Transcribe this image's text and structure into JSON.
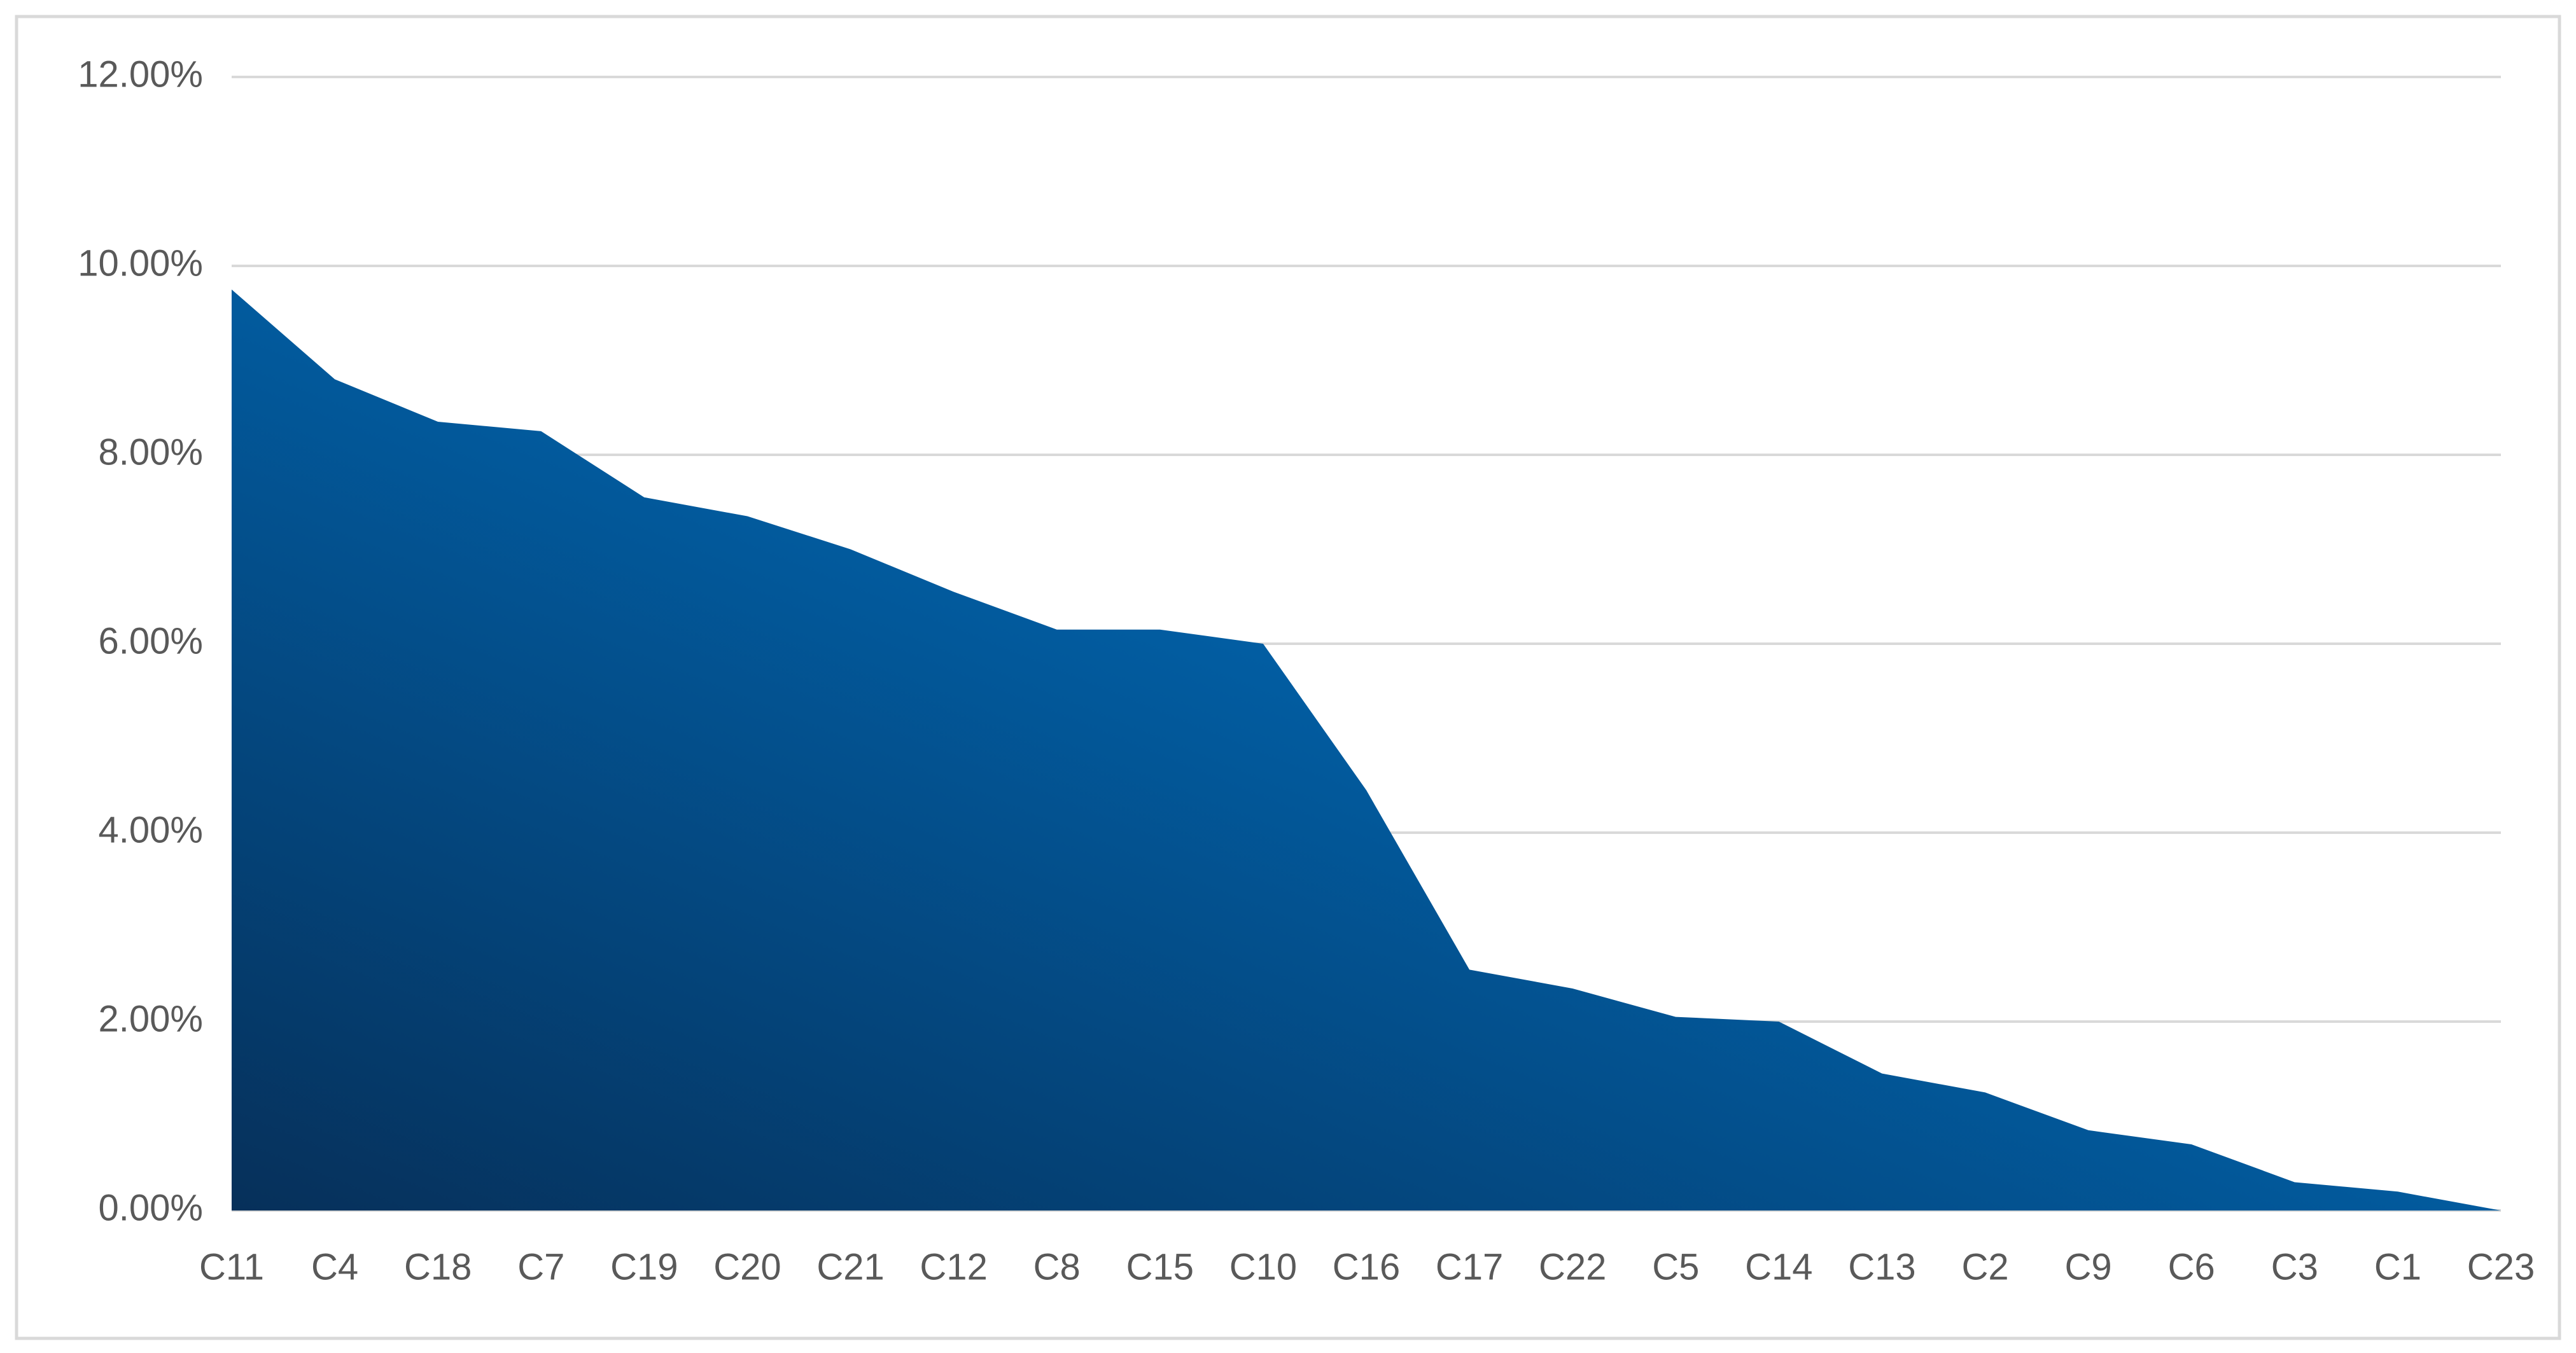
{
  "chart_data": {
    "type": "area",
    "categories": [
      "C11",
      "C4",
      "C18",
      "C7",
      "C19",
      "C20",
      "C21",
      "C12",
      "C8",
      "C15",
      "C10",
      "C16",
      "C17",
      "C22",
      "C5",
      "C14",
      "C13",
      "C2",
      "C9",
      "C6",
      "C3",
      "C1",
      "C23"
    ],
    "values": [
      9.75,
      8.8,
      8.35,
      8.25,
      7.55,
      7.35,
      7.0,
      6.55,
      6.15,
      6.15,
      6.0,
      4.45,
      2.55,
      2.35,
      2.05,
      2.0,
      1.45,
      1.25,
      0.85,
      0.7,
      0.3,
      0.2,
      0.0
    ],
    "color": "#0070c0",
    "ylim": [
      0,
      12
    ],
    "yticks": [
      {
        "value": 0,
        "label": "0.00%"
      },
      {
        "value": 2,
        "label": "2.00%"
      },
      {
        "value": 4,
        "label": "4.00%"
      },
      {
        "value": 6,
        "label": "6.00%"
      },
      {
        "value": 8,
        "label": "8.00%"
      },
      {
        "value": 10,
        "label": "10.00%"
      },
      {
        "value": 12,
        "label": "12.00%"
      }
    ],
    "grid": true
  }
}
